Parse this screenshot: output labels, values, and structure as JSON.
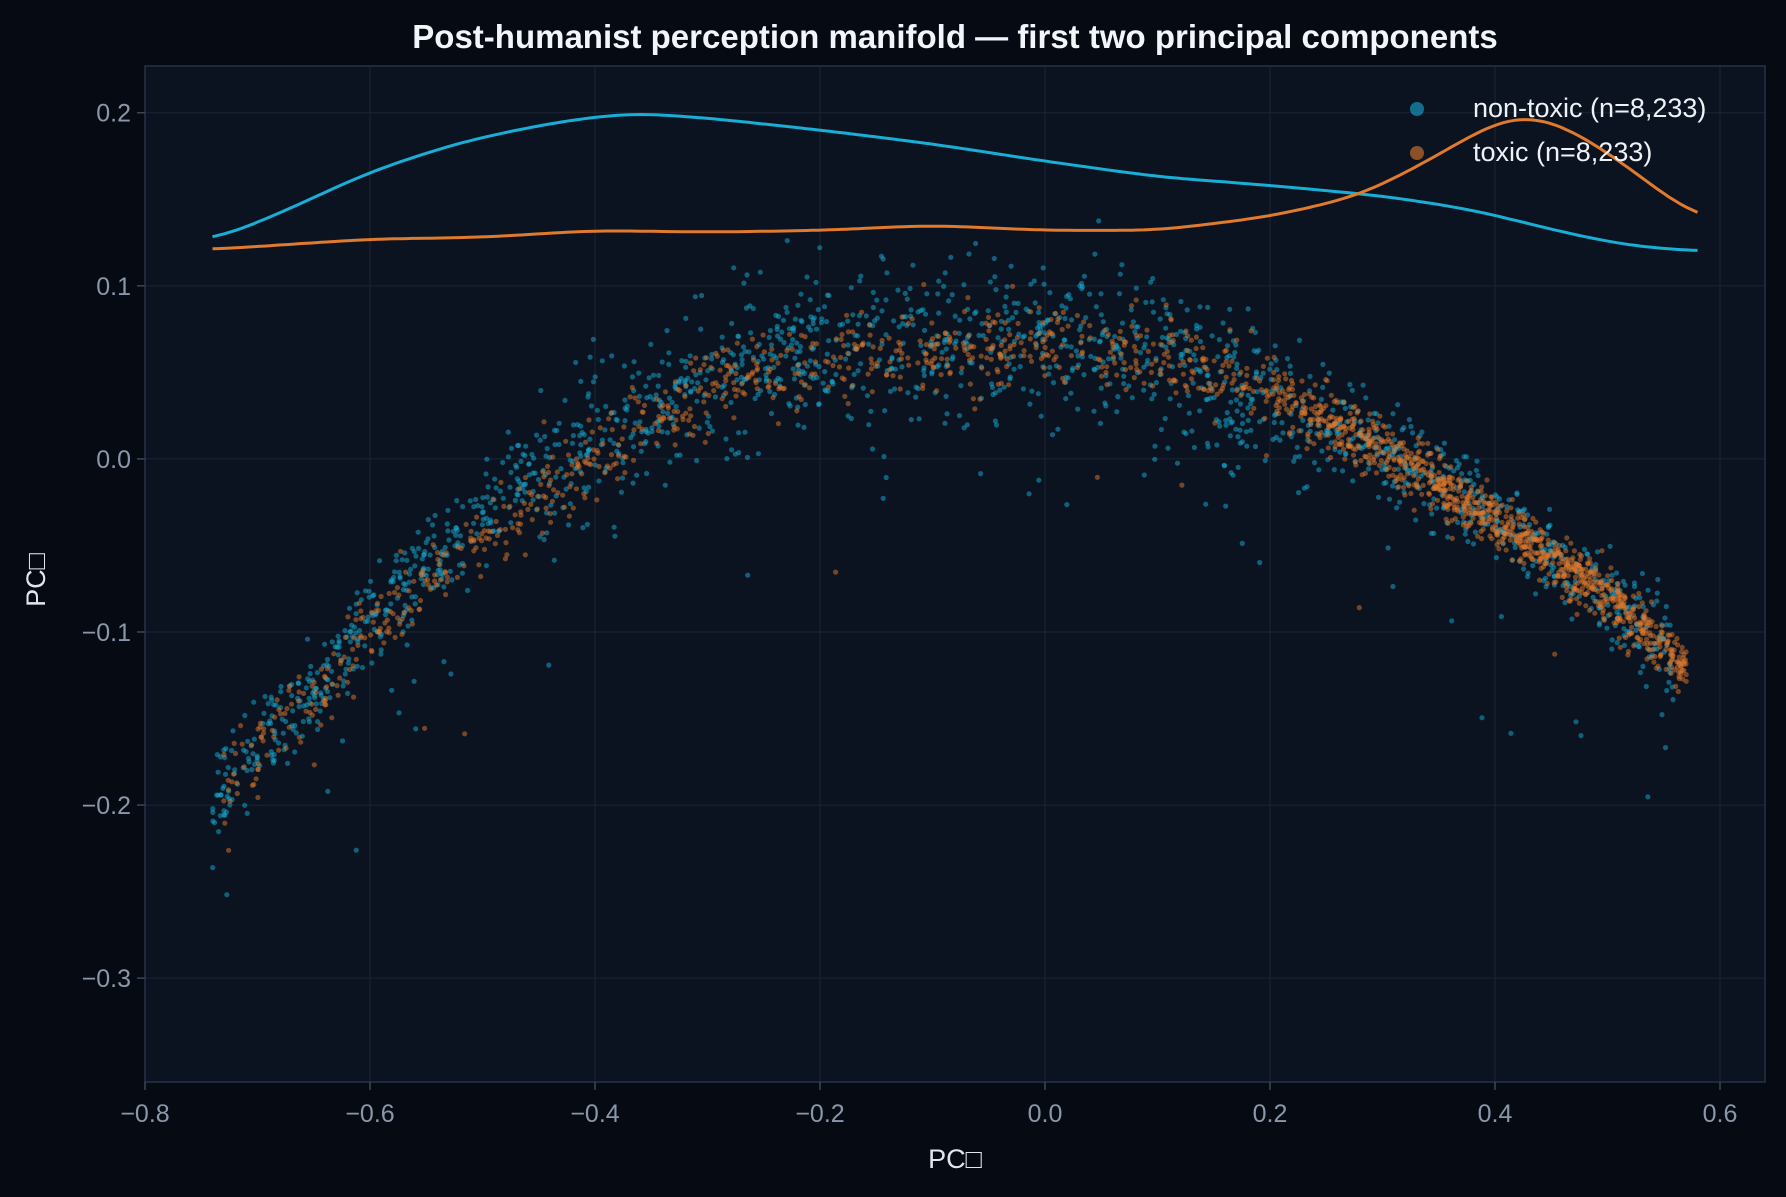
{
  "chart_data": {
    "type": "scatter",
    "title": "Post-humanist perception manifold — first two principal components",
    "xlabel": "PC□",
    "ylabel": "PC□",
    "xlim": [
      -0.8,
      0.64
    ],
    "ylim": [
      -0.36,
      0.227
    ],
    "x_ticks": [
      -0.8,
      -0.6,
      -0.4,
      -0.2,
      0.0,
      0.2,
      0.4,
      0.6
    ],
    "x_tick_labels": [
      "−0.8",
      "−0.6",
      "−0.4",
      "−0.2",
      "0.0",
      "0.2",
      "0.4",
      "0.6"
    ],
    "y_ticks": [
      0.2,
      0.1,
      0.0,
      -0.1,
      -0.2,
      -0.3
    ],
    "y_tick_labels": [
      "0.2",
      "0.1",
      "0.0",
      "−0.1",
      "−0.2",
      "−0.3"
    ],
    "grid": true,
    "legend_position": "top-right",
    "colors": {
      "background": "#060a12",
      "plot_background": "#0b1320",
      "grid": "#1a2433",
      "spine": "#263347",
      "non_toxic": "#18aed6",
      "toxic": "#e07a2c"
    },
    "series": [
      {
        "name": "non-toxic (n=8,233)",
        "count": 8233,
        "color": "#18aed6",
        "manifold_centerline": [
          [
            -0.74,
            -0.195
          ],
          [
            -0.68,
            -0.155
          ],
          [
            -0.6,
            -0.095
          ],
          [
            -0.5,
            -0.03
          ],
          [
            -0.4,
            0.018
          ],
          [
            -0.3,
            0.048
          ],
          [
            -0.2,
            0.066
          ],
          [
            -0.1,
            0.074
          ],
          [
            0.0,
            0.074
          ],
          [
            0.1,
            0.062
          ],
          [
            0.2,
            0.038
          ],
          [
            0.3,
            0.008
          ],
          [
            0.4,
            -0.032
          ],
          [
            0.5,
            -0.078
          ],
          [
            0.57,
            -0.115
          ]
        ],
        "density_curve": [
          [
            -0.74,
            0.126
          ],
          [
            -0.68,
            0.142
          ],
          [
            -0.6,
            0.166
          ],
          [
            -0.52,
            0.183
          ],
          [
            -0.44,
            0.194
          ],
          [
            -0.37,
            0.2
          ],
          [
            -0.3,
            0.197
          ],
          [
            -0.2,
            0.19
          ],
          [
            -0.1,
            0.182
          ],
          [
            0.0,
            0.172
          ],
          [
            0.1,
            0.163
          ],
          [
            0.2,
            0.158
          ],
          [
            0.3,
            0.152
          ],
          [
            0.38,
            0.144
          ],
          [
            0.46,
            0.131
          ],
          [
            0.52,
            0.123
          ],
          [
            0.58,
            0.12
          ]
        ]
      },
      {
        "name": "toxic (n=8,233)",
        "count": 8233,
        "color": "#e07a2c",
        "manifold_centerline": [
          [
            -0.73,
            -0.19
          ],
          [
            -0.66,
            -0.145
          ],
          [
            -0.6,
            -0.1
          ],
          [
            -0.5,
            -0.045
          ],
          [
            -0.4,
            0.0
          ],
          [
            -0.3,
            0.04
          ],
          [
            -0.2,
            0.058
          ],
          [
            -0.1,
            0.062
          ],
          [
            0.0,
            0.066
          ],
          [
            0.1,
            0.062
          ],
          [
            0.2,
            0.04
          ],
          [
            0.3,
            0.005
          ],
          [
            0.4,
            -0.035
          ],
          [
            0.5,
            -0.08
          ],
          [
            0.57,
            -0.12
          ]
        ],
        "density_curve": [
          [
            -0.74,
            0.121
          ],
          [
            -0.6,
            0.127
          ],
          [
            -0.5,
            0.128
          ],
          [
            -0.4,
            0.132
          ],
          [
            -0.3,
            0.131
          ],
          [
            -0.2,
            0.132
          ],
          [
            -0.1,
            0.135
          ],
          [
            0.0,
            0.132
          ],
          [
            0.1,
            0.132
          ],
          [
            0.2,
            0.14
          ],
          [
            0.28,
            0.152
          ],
          [
            0.34,
            0.172
          ],
          [
            0.4,
            0.195
          ],
          [
            0.43,
            0.2
          ],
          [
            0.47,
            0.19
          ],
          [
            0.52,
            0.168
          ],
          [
            0.58,
            0.138
          ]
        ]
      }
    ]
  }
}
